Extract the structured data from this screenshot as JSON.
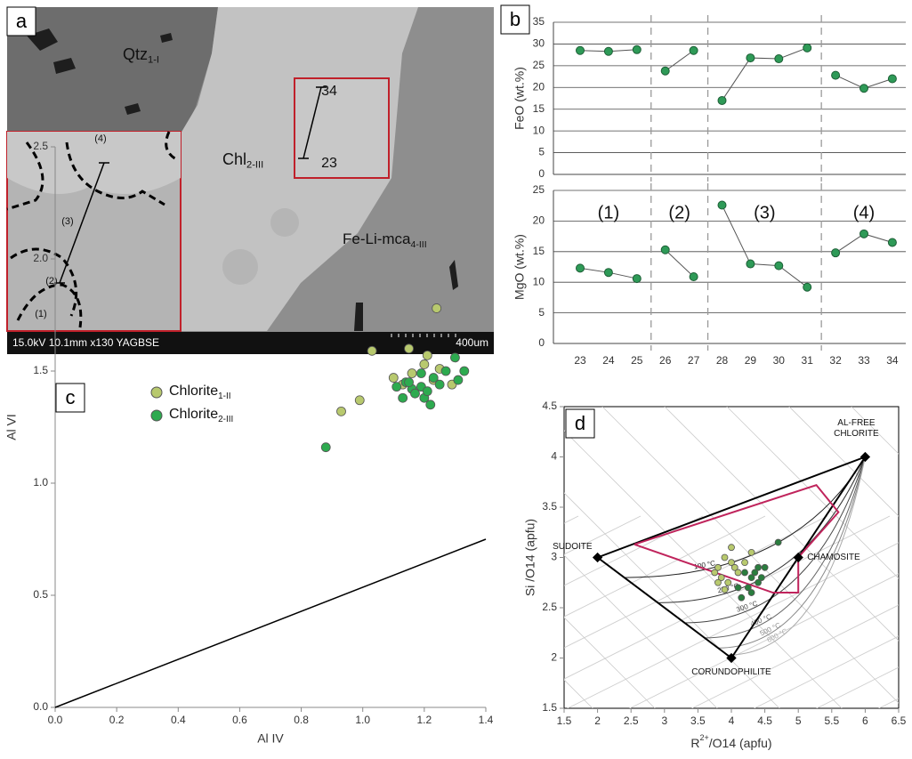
{
  "chart_data": [
    {
      "type": "image",
      "panel": "a",
      "labels": [
        {
          "text": "Qtz",
          "sub": "1-I"
        },
        {
          "text": "Chl",
          "sub": "2-III"
        },
        {
          "text": "Fe-Li-mca",
          "sub": "4-III"
        },
        {
          "text": "34"
        },
        {
          "text": "23"
        },
        {
          "text": "(4)"
        },
        {
          "text": "(3)"
        },
        {
          "text": "(2)"
        },
        {
          "text": "(1)"
        }
      ],
      "footer": "15.0kV 10.1mm x130 YAGBSE",
      "scale": "400um"
    },
    {
      "type": "line",
      "panel": "b",
      "ylabel": "FeO (wt.%)",
      "ylim": [
        0,
        35
      ],
      "yticks": [
        0,
        5,
        10,
        15,
        20,
        25,
        30,
        35
      ],
      "grid": true,
      "series": [
        {
          "color": "#2e9a57",
          "values": [
            28.5,
            28.3,
            28.7,
            null,
            null,
            null,
            null,
            null,
            null,
            null,
            null,
            null
          ]
        },
        {
          "color": "#2e9a57",
          "values": [
            null,
            null,
            null,
            23.8,
            28.5,
            null,
            null,
            null,
            null,
            null,
            null,
            null
          ]
        },
        {
          "color": "#2e9a57",
          "values": [
            null,
            null,
            null,
            null,
            null,
            17,
            26.8,
            26.6,
            29.1,
            null,
            null,
            null
          ]
        },
        {
          "color": "#2e9a57",
          "values": [
            null,
            null,
            null,
            null,
            null,
            null,
            null,
            null,
            null,
            22.8,
            19.8,
            22
          ]
        }
      ]
    },
    {
      "type": "line",
      "ylabel": "MgO (wt.%)",
      "ylim": [
        0,
        25
      ],
      "yticks": [
        0,
        5,
        10,
        15,
        20,
        25
      ],
      "grid": true,
      "categories": [
        "23",
        "24",
        "25",
        "26",
        "27",
        "28",
        "29",
        "30",
        "31",
        "32",
        "33",
        "34"
      ],
      "group_labels": [
        "(1)",
        "(2)",
        "(3)",
        "(4)"
      ],
      "series": [
        {
          "color": "#2e9a57",
          "values": [
            12.3,
            11.6,
            10.6,
            null,
            null,
            null,
            null,
            null,
            null,
            null,
            null,
            null
          ]
        },
        {
          "color": "#2e9a57",
          "values": [
            null,
            null,
            null,
            15.3,
            10.9,
            null,
            null,
            null,
            null,
            null,
            null,
            null
          ]
        },
        {
          "color": "#2e9a57",
          "values": [
            null,
            null,
            null,
            null,
            null,
            22.6,
            13,
            12.7,
            9.2,
            null,
            null,
            null
          ]
        },
        {
          "color": "#2e9a57",
          "values": [
            null,
            null,
            null,
            null,
            null,
            null,
            null,
            null,
            null,
            14.8,
            17.9,
            16.5
          ]
        }
      ]
    },
    {
      "type": "scatter",
      "panel": "c",
      "xlabel": "Al IV",
      "ylabel": "Al VI",
      "xlim": [
        0,
        1.4
      ],
      "xticks": [
        {
          "value": 0,
          "label": "0.0"
        },
        0.2,
        0.4,
        0.6,
        0.8,
        {
          "value": 1,
          "label": "1.0"
        },
        1.2,
        1.4
      ],
      "ylim": [
        0,
        2.5
      ],
      "yticks": [
        {
          "value": 0,
          "label": "0.0"
        },
        0.5,
        {
          "value": 1,
          "label": "1.0"
        },
        1.5,
        {
          "value": 2,
          "label": "2.0"
        },
        2.5
      ],
      "lines": [
        {
          "color": "#000000",
          "x": [
            0,
            1.4
          ],
          "y": [
            0,
            0.75
          ]
        }
      ],
      "series": [
        {
          "name": "Chlorite",
          "name_sub": "1-II",
          "color": "#b8c96e",
          "x": [
            0.93,
            0.99,
            1.03,
            1.1,
            1.15,
            1.16,
            1.2,
            1.24,
            1.25,
            1.23,
            1.29,
            1.13,
            1.21
          ],
          "y": [
            1.32,
            1.37,
            1.59,
            1.47,
            1.6,
            1.49,
            1.53,
            1.78,
            1.51,
            1.46,
            1.44,
            1.44,
            1.57
          ]
        },
        {
          "name": "Chlorite",
          "name_sub": "2-III",
          "color": "#2daa4f",
          "x": [
            0.88,
            1.11,
            1.13,
            1.14,
            1.16,
            1.17,
            1.19,
            1.2,
            1.21,
            1.22,
            1.23,
            1.25,
            1.27,
            1.3,
            1.31,
            1.33,
            1.15,
            1.19
          ],
          "y": [
            1.16,
            1.43,
            1.38,
            1.45,
            1.42,
            1.4,
            1.43,
            1.38,
            1.41,
            1.35,
            1.47,
            1.44,
            1.5,
            1.56,
            1.46,
            1.5,
            1.45,
            1.49
          ]
        }
      ]
    },
    {
      "type": "scatter",
      "panel": "d",
      "xlabel": {
        "pre": "R",
        "sup": "2+",
        "post": "/O14 (apfu)"
      },
      "ylabel": "Si /O14 (apfu)",
      "xlim": [
        1.5,
        6.5
      ],
      "xticks": [
        1.5,
        2,
        2.5,
        3,
        3.5,
        4,
        4.5,
        5,
        5.5,
        6,
        6.5
      ],
      "ylim": [
        1.5,
        4.5
      ],
      "yticks": [
        1.5,
        2,
        2.5,
        3,
        3.5,
        4,
        4.5
      ],
      "polygons": [
        {
          "color": "#000000",
          "x": [
            2,
            6,
            4,
            2
          ],
          "y": [
            3,
            4,
            2,
            3
          ]
        },
        {
          "color": "#c0245c",
          "x": [
            2.55,
            5.27,
            5.6,
            5.0,
            5.0,
            4.62,
            2.55
          ],
          "y": [
            3.13,
            3.72,
            3.45,
            3.0,
            2.65,
            2.65,
            3.13
          ]
        }
      ],
      "isotherms": [
        {
          "label": "100 °C",
          "color": "#222222",
          "x": [
            2.4,
            6
          ],
          "y": [
            2.8,
            4
          ]
        },
        {
          "label": "200 °C",
          "color": "#333333",
          "x": [
            2.9,
            6
          ],
          "y": [
            2.55,
            4
          ]
        },
        {
          "label": "300 °C",
          "color": "#444444",
          "x": [
            3.3,
            6
          ],
          "y": [
            2.35,
            4
          ]
        },
        {
          "label": "400 °C",
          "color": "#666666",
          "x": [
            3.6,
            6
          ],
          "y": [
            2.2,
            4
          ]
        },
        {
          "label": "500 °C",
          "color": "#888888",
          "x": [
            3.8,
            6
          ],
          "y": [
            2.1,
            4
          ]
        },
        {
          "label": "600 °C",
          "color": "#aaaaaa",
          "x": [
            3.95,
            6
          ],
          "y": [
            2.03,
            4
          ]
        }
      ],
      "end_members": [
        {
          "label": [
            "SUDOITE"
          ],
          "x": 2,
          "y": 3
        },
        {
          "label": [
            "AL-FREE",
            "CHLORITE"
          ],
          "x": 6,
          "y": 4
        },
        {
          "label": [
            "CHAMOSITE"
          ],
          "x": 5,
          "y": 3
        },
        {
          "label": [
            "CORUNDOPHILITE"
          ],
          "x": 4,
          "y": 2
        }
      ],
      "series": [
        {
          "color": "#b8c96e",
          "x": [
            3.75,
            3.8,
            3.85,
            3.9,
            4.0,
            3.95,
            4.05,
            3.8,
            4.1,
            4.2,
            4.3,
            4.0,
            3.9
          ],
          "y": [
            2.85,
            2.9,
            2.8,
            3.0,
            2.95,
            2.75,
            2.9,
            2.75,
            2.85,
            2.95,
            3.05,
            3.1,
            2.68
          ]
        },
        {
          "color": "#2a7d3e",
          "x": [
            4.3,
            4.35,
            4.4,
            4.25,
            4.45,
            4.2,
            4.3,
            4.5,
            4.7,
            4.1,
            4.4,
            4.15
          ],
          "y": [
            2.8,
            2.85,
            2.75,
            2.7,
            2.8,
            2.85,
            2.65,
            2.9,
            3.15,
            2.7,
            2.9,
            2.6
          ]
        }
      ]
    }
  ]
}
